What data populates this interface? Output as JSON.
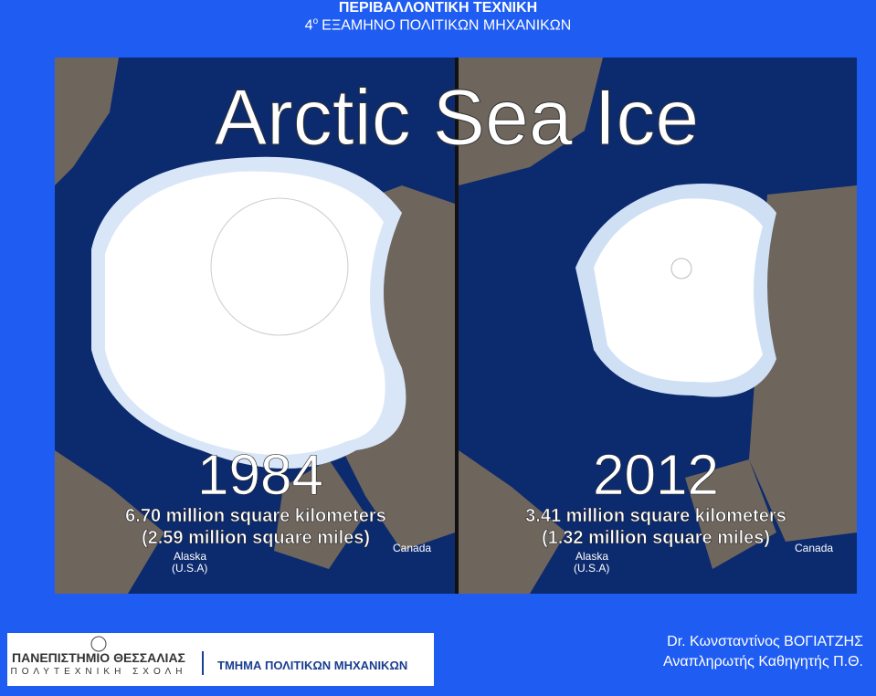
{
  "header": {
    "title": "ΠΕΡΙΒΑΛΛΟΝΤΙΚΗ ΤΕΧΝΙΚΗ",
    "subtitle": {
      "number": "4",
      "ordinal": "ο",
      "text": "ΕΞΑΜΗΝΟ ΠΟΛΙΤΙΚΩΝ ΜΗΧΑΝΙΚΩΝ"
    }
  },
  "image": {
    "title": "Arctic Sea Ice",
    "panels": [
      {
        "year": "1984",
        "area_km": "6.70 million square kilometers",
        "area_mi": "(2.59 million square miles)",
        "region1": "Alaska",
        "region1_note": "(U.S.A)",
        "region2": "Canada"
      },
      {
        "year": "2012",
        "area_km": "3.41 million square kilometers",
        "area_mi": "(1.32 million square miles)",
        "region1": "Alaska",
        "region1_note": "(U.S.A)",
        "region2": "Canada"
      }
    ]
  },
  "footer": {
    "university": "ΠΑΝΕΠΙΣΤΗΜΙΟ ΘΕΣΣΑΛΙΑΣ",
    "school": "ΠΟΛΥΤΕΧΝΙΚΗ ΣΧΟΛΗ",
    "department": "ΤΜΗΜΑ ΠΟΛΙΤΙΚΩΝ ΜΗΧΑΝΙΚΩΝ",
    "author": "Dr. Κωνσταντίνος ΒΟΓΙΑΤΖΗΣ",
    "position": "Αναπληρωτής Καθηγητής Π.Θ."
  }
}
